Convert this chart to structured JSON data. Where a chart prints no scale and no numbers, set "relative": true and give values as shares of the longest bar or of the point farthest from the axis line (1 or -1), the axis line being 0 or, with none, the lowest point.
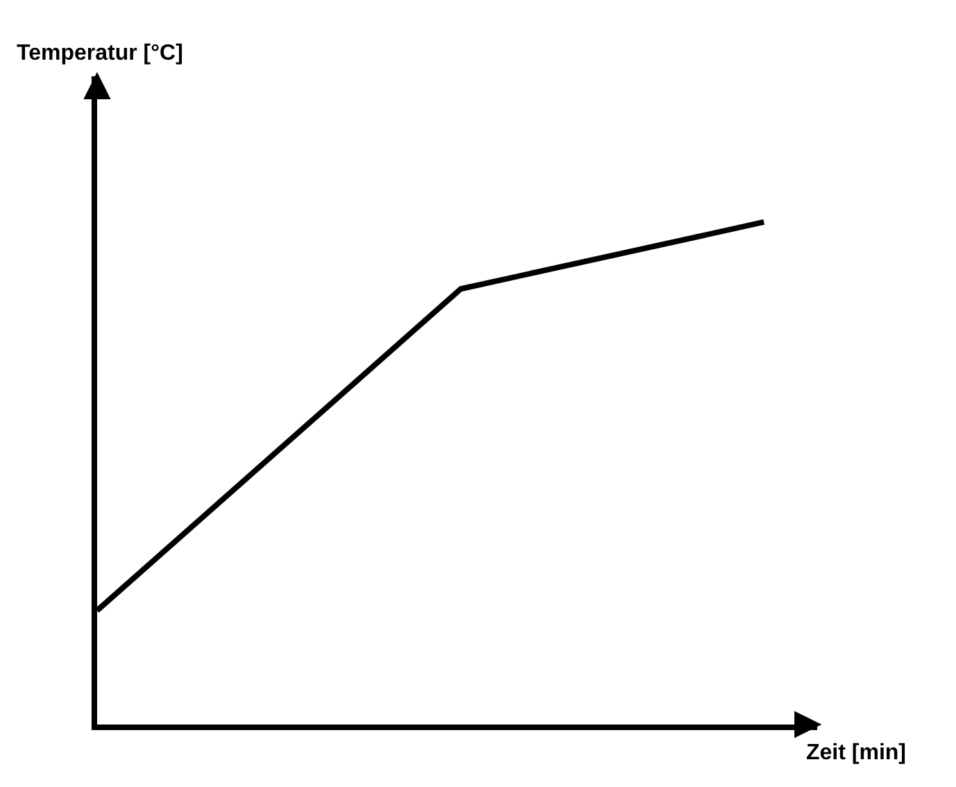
{
  "chart_data": {
    "type": "line",
    "relative": true,
    "xlabel": "Zeit [min]",
    "annotations": [
      "Temperatur [°C]"
    ],
    "categories": [
      null,
      null,
      null,
      null,
      null,
      null,
      null,
      null,
      null,
      null,
      null,
      null
    ],
    "series": [
      {
        "color": "#000000",
        "values": [
          0.227,
          null,
          null,
          null,
          null,
          null,
          0.867,
          null,
          null,
          null,
          null,
          1
        ]
      }
    ],
    "legend": false,
    "marker": "none",
    "line_style": "solid"
  }
}
